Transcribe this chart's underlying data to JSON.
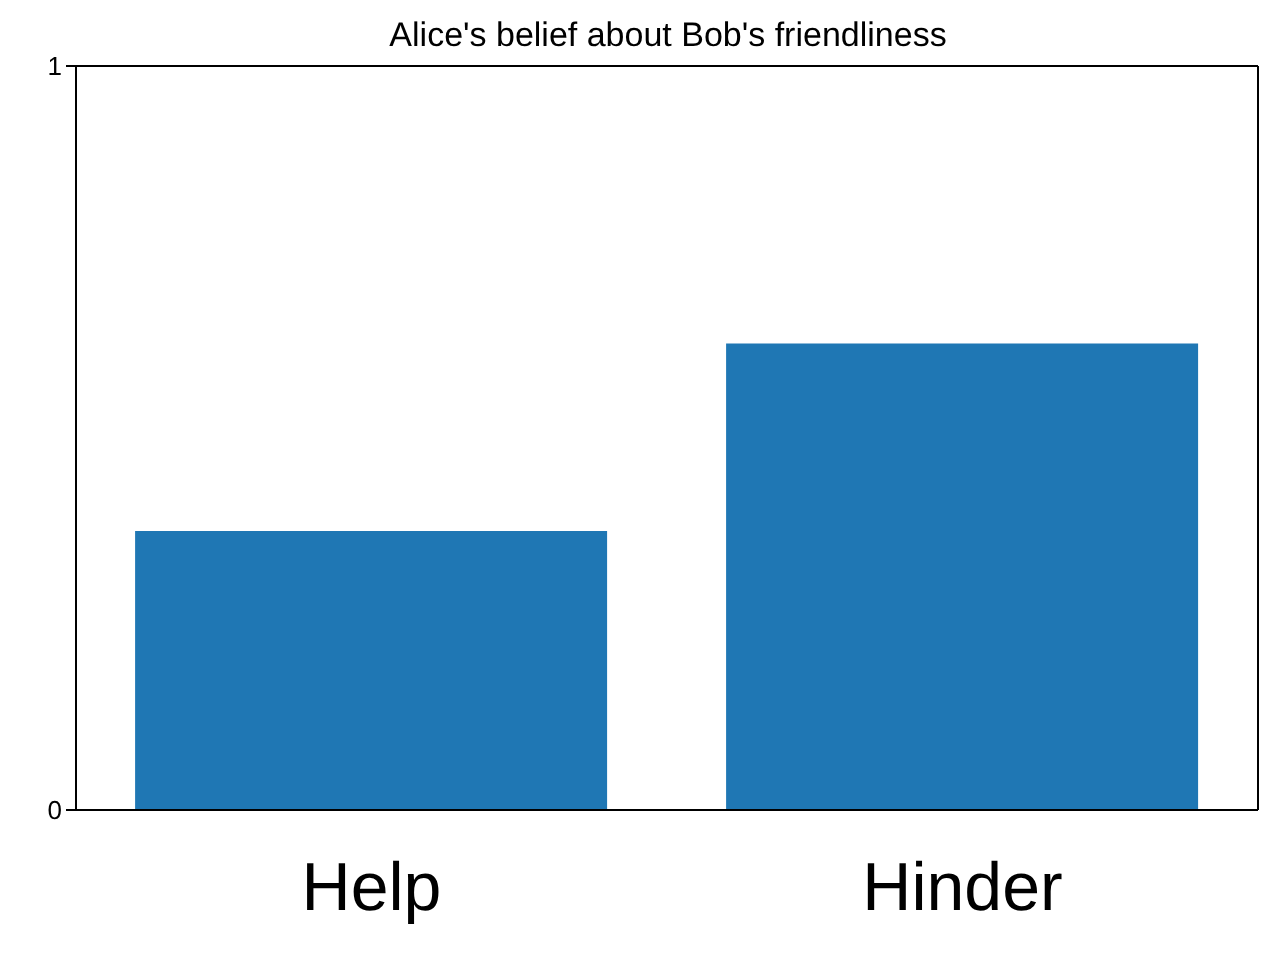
{
  "chart_data": {
    "type": "bar",
    "title": "Alice's belief about Bob's friendliness",
    "categories": [
      "Help",
      "Hinder"
    ],
    "values": [
      0.375,
      0.627
    ],
    "color": "#1f77b4",
    "ylim": [
      0,
      1
    ],
    "yticks": [
      0,
      1
    ],
    "grid": false
  }
}
